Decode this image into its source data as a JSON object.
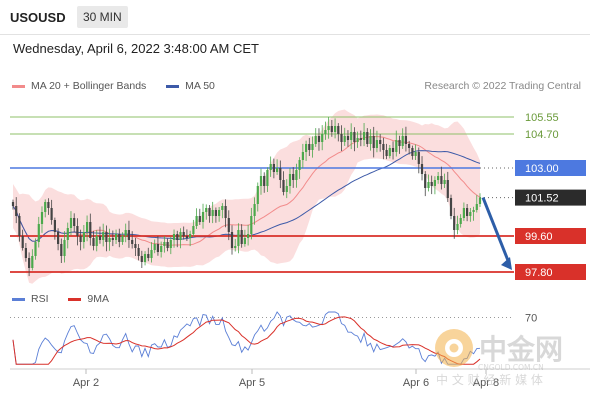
{
  "header": {
    "symbol": "USOUSD",
    "timeframe": "30 MIN"
  },
  "datetime": "Wednesday, April 6, 2022 3:48:00 AM CET",
  "legend": {
    "bollinger": "MA 20 + Bollinger Bands",
    "ma50": "MA 50",
    "rsi": "RSI",
    "rsi_ma": "9MA"
  },
  "copyright": "Research © 2022 Trading Central",
  "watermark": {
    "main": "中金网",
    "domain": "CNGOLD.COM.CN",
    "sub": "中 文 财 经 新 媒 体"
  },
  "colors": {
    "bollinger": "#f28b8b",
    "band_fill": "#fbdede",
    "ma50": "#3d5aa8",
    "support": "#d9312a",
    "resistance_blue": "#4d79e0",
    "resistance_green": "#8fc06a",
    "current": "#2b2b2b",
    "bull_candle": "#4ba84b",
    "bear_candle": "#444444",
    "rsi": "#5b7fd6",
    "rsi_ma": "#d9312a",
    "arrow": "#2d5ea8"
  },
  "chart_data": {
    "type": "candlestick",
    "y_range": [
      97.3,
      106.3
    ],
    "x_labels": [
      "Apr 2",
      "Apr 5",
      "Apr 6",
      "Apr 8"
    ],
    "levels": [
      {
        "value": 105.55,
        "label": "105.55",
        "kind": "resistance-green"
      },
      {
        "value": 104.7,
        "label": "104.70",
        "kind": "resistance-green"
      },
      {
        "value": 103.0,
        "label": "103.00",
        "kind": "resistance-blue"
      },
      {
        "value": 101.52,
        "label": "101.52",
        "kind": "current"
      },
      {
        "value": 99.6,
        "label": "99.60",
        "kind": "support"
      },
      {
        "value": 97.8,
        "label": "97.80",
        "kind": "support"
      }
    ],
    "close": [
      101.1,
      100.6,
      99.6,
      99.0,
      98.5,
      98.0,
      98.6,
      99.3,
      100.2,
      100.8,
      101.3,
      101.0,
      100.4,
      99.8,
      99.2,
      98.6,
      99.4,
      100.0,
      100.5,
      100.1,
      99.6,
      99.3,
      99.8,
      100.3,
      99.5,
      99.1,
      99.6,
      99.4,
      99.8,
      99.3,
      99.5,
      99.4,
      99.7,
      99.3,
      99.6,
      99.9,
      99.4,
      99.2,
      99.0,
      98.6,
      98.3,
      98.7,
      98.5,
      98.9,
      99.2,
      98.8,
      99.1,
      99.3,
      99.0,
      99.4,
      99.7,
      99.4,
      99.8,
      99.6,
      99.5,
      99.7,
      100.1,
      100.6,
      100.3,
      100.8,
      101.0,
      100.6,
      100.9,
      100.6,
      100.9,
      101.1,
      100.5,
      99.8,
      99.0,
      99.1,
      99.9,
      99.2,
      99.5,
      99.7,
      100.6,
      101.2,
      102.1,
      102.6,
      102.1,
      102.9,
      103.2,
      102.8,
      103.0,
      102.4,
      101.8,
      102.1,
      102.7,
      102.4,
      102.9,
      103.4,
      103.8,
      104.2,
      103.9,
      104.2,
      104.6,
      104.3,
      104.7,
      104.9,
      105.1,
      104.8,
      105.1,
      104.7,
      104.3,
      104.6,
      104.4,
      104.8,
      104.3,
      104.5,
      104.4,
      104.8,
      104.2,
      104.6,
      104.0,
      104.4,
      104.2,
      103.9,
      103.6,
      104.0,
      103.8,
      104.4,
      104.1,
      104.6,
      104.2,
      104.0,
      103.6,
      103.8,
      103.2,
      102.7,
      102.0,
      102.3,
      102.1,
      102.4,
      102.6,
      102.2,
      102.4,
      101.5,
      100.6,
      99.9,
      100.2,
      100.5,
      101.0,
      100.6,
      100.8,
      100.9,
      101.2,
      101.52
    ],
    "indicators": {
      "bollinger": "MA 20 + Bollinger Bands",
      "ma50": "MA 50",
      "rsi": "RSI",
      "rsi_ma": "9MA",
      "rsi_level": 70
    },
    "projection": {
      "from": 101.52,
      "to": 97.8
    }
  }
}
